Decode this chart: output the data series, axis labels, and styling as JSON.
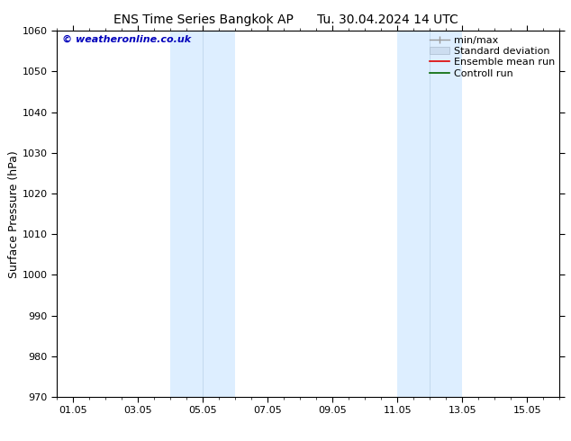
{
  "title_left": "ENS Time Series Bangkok AP",
  "title_right": "Tu. 30.04.2024 14 UTC",
  "ylabel": "Surface Pressure (hPa)",
  "xlim": [
    0,
    15.5
  ],
  "ylim": [
    970,
    1060
  ],
  "yticks": [
    970,
    980,
    990,
    1000,
    1010,
    1020,
    1030,
    1040,
    1050,
    1060
  ],
  "xtick_labels": [
    "01.05",
    "03.05",
    "05.05",
    "07.05",
    "09.05",
    "11.05",
    "13.05",
    "15.05"
  ],
  "xtick_positions": [
    0.5,
    2.5,
    4.5,
    6.5,
    8.5,
    10.5,
    12.5,
    14.5
  ],
  "watermark": "© weatheronline.co.uk",
  "watermark_color": "#0000bb",
  "shaded_regions": [
    {
      "xmin": 3.5,
      "xmax": 5.5,
      "color": "#ddeeff",
      "line_x": 4.5
    },
    {
      "xmin": 10.5,
      "xmax": 12.5,
      "color": "#ddeeff",
      "line_x": 11.5
    }
  ],
  "background_color": "#ffffff",
  "spine_color": "#000000",
  "tick_color": "#000000",
  "title_fontsize": 10,
  "tick_fontsize": 8,
  "ylabel_fontsize": 9,
  "watermark_fontsize": 8,
  "legend_fontsize": 8
}
